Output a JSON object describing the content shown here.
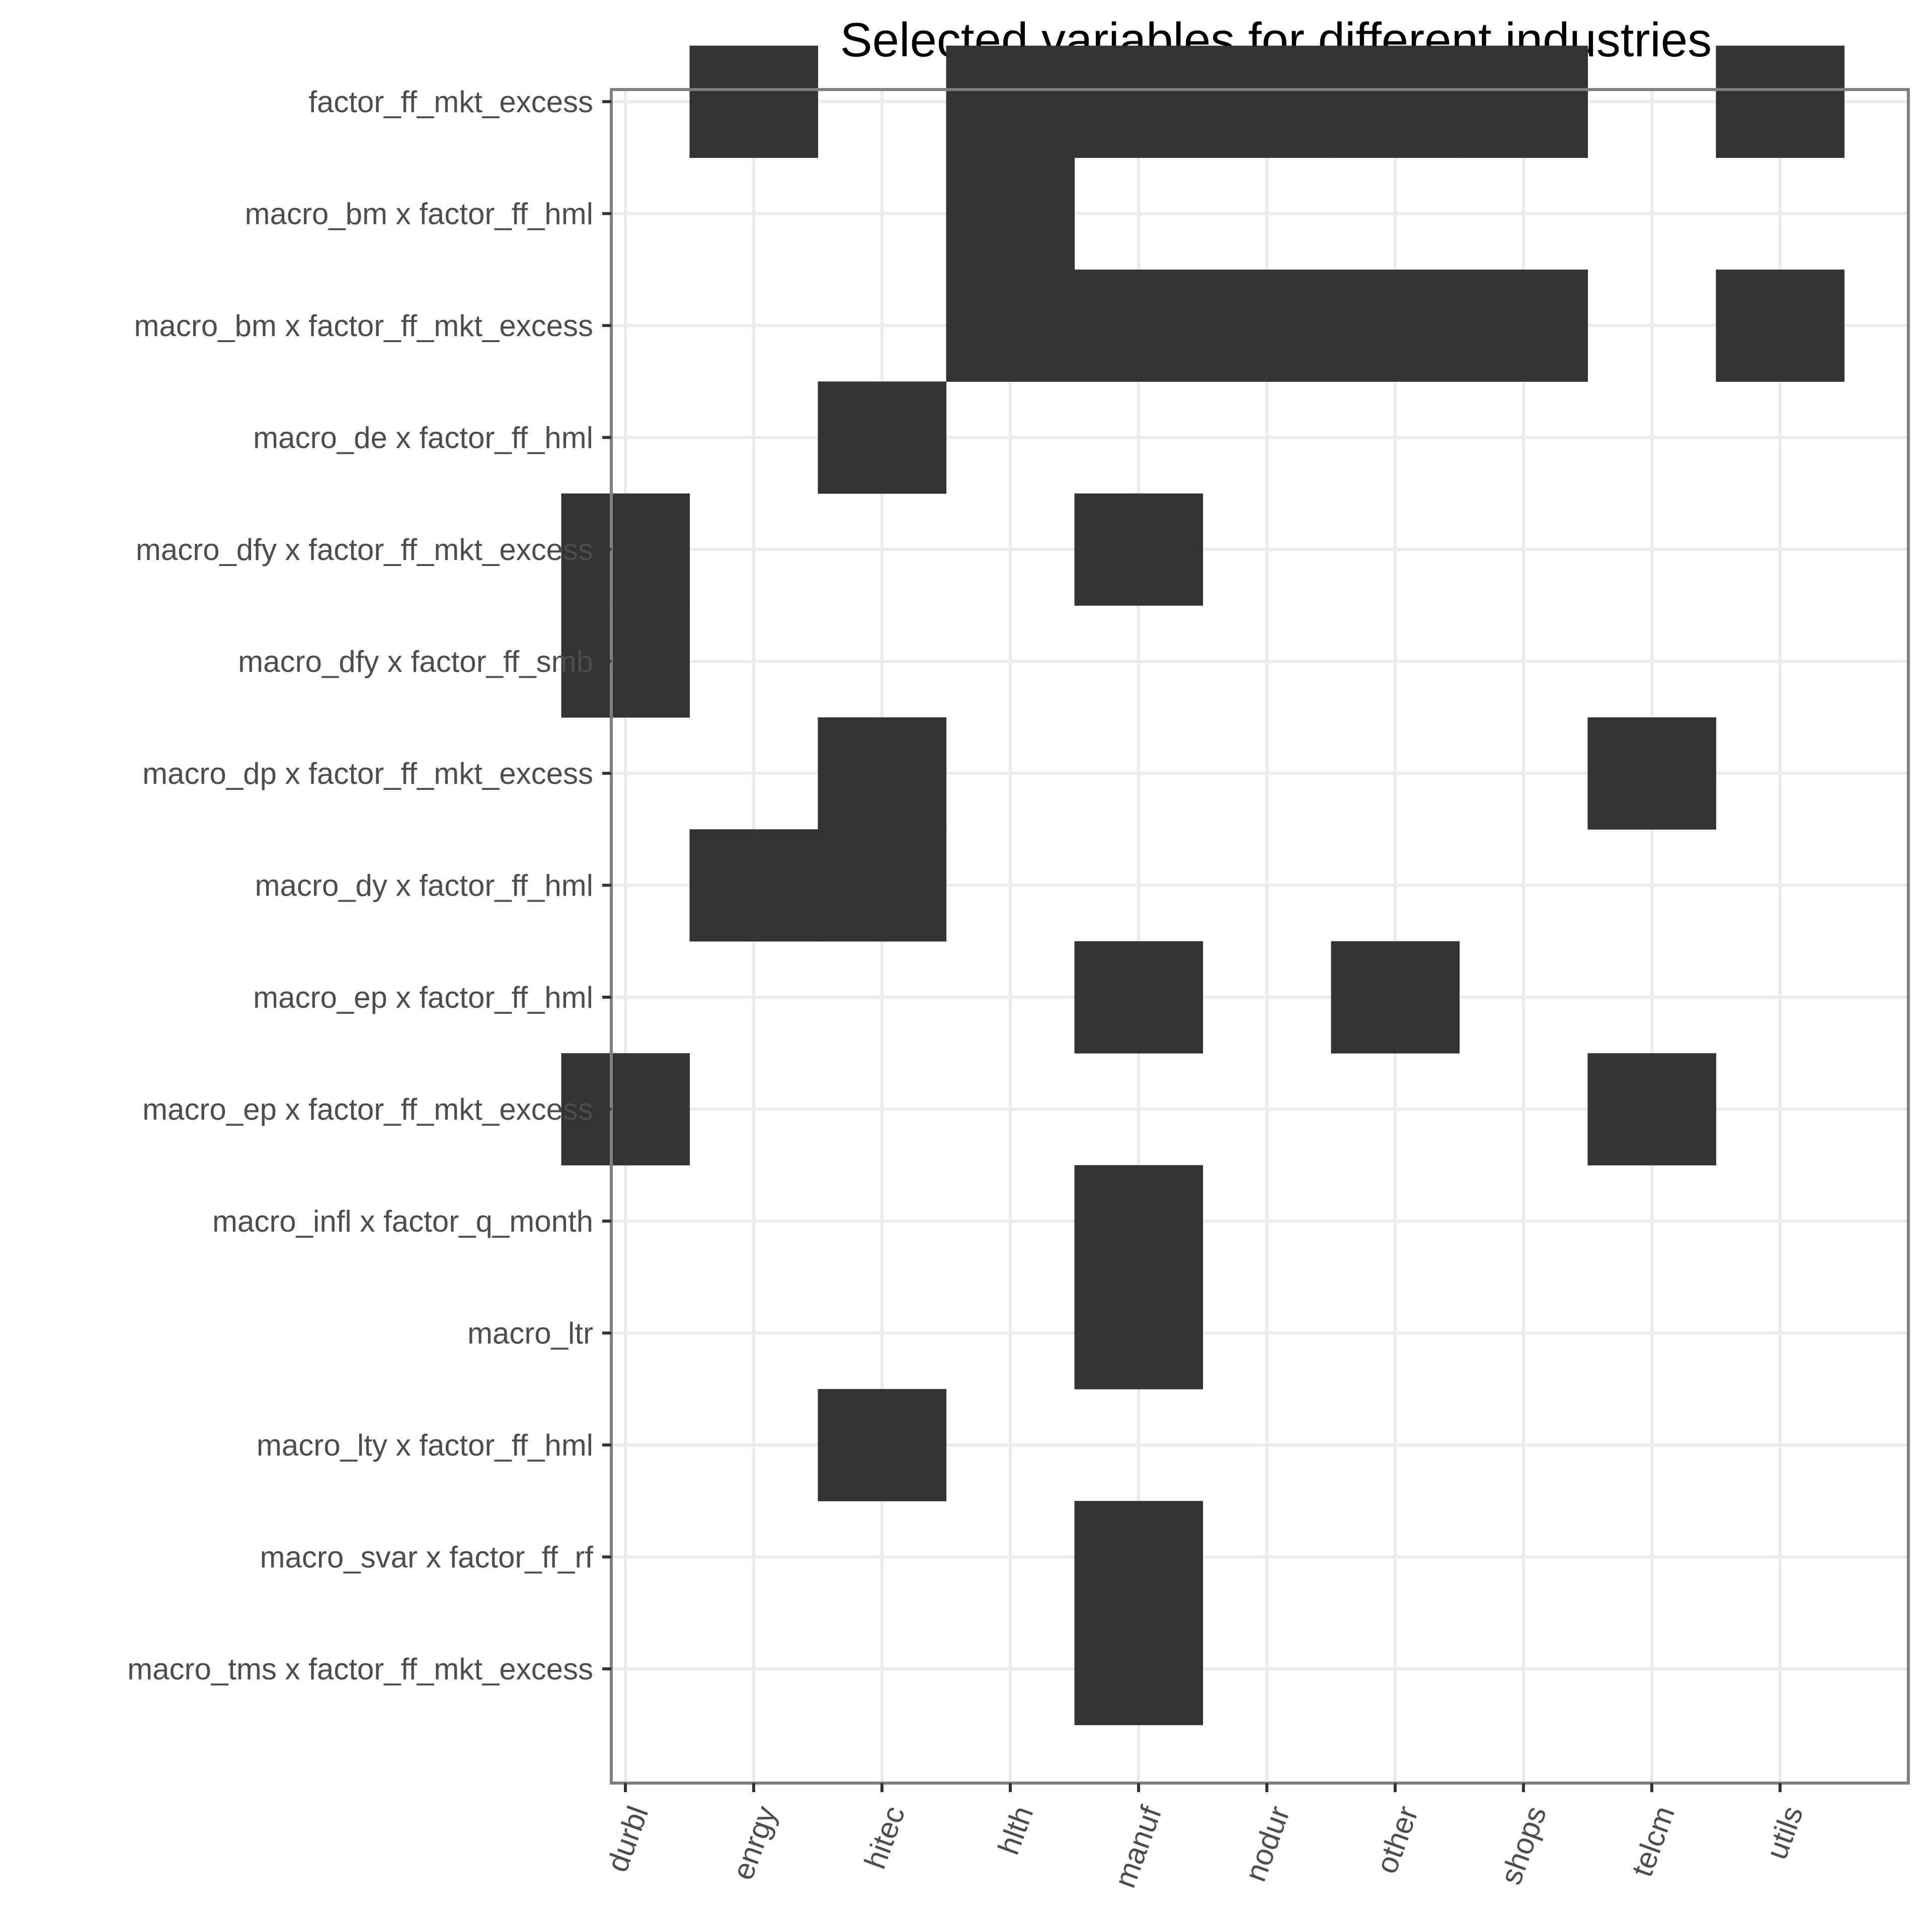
{
  "chart_data": {
    "type": "heatmap",
    "title": "Selected variables for different industries",
    "xlabel": "",
    "ylabel": "",
    "x_categories": [
      "durbl",
      "enrgy",
      "hitec",
      "hlth",
      "manuf",
      "nodur",
      "other",
      "shops",
      "telcm",
      "utils"
    ],
    "y_categories": [
      "factor_ff_mkt_excess",
      "macro_bm x factor_ff_hml",
      "macro_bm x factor_ff_mkt_excess",
      "macro_de x factor_ff_hml",
      "macro_dfy x factor_ff_mkt_excess",
      "macro_dfy x factor_ff_smb",
      "macro_dp x factor_ff_mkt_excess",
      "macro_dy x factor_ff_hml",
      "macro_ep x factor_ff_hml",
      "macro_ep x factor_ff_mkt_excess",
      "macro_infl x factor_q_month",
      "macro_ltr",
      "macro_lty x factor_ff_hml",
      "macro_svar x factor_ff_rf",
      "macro_tms x factor_ff_mkt_excess"
    ],
    "selected": [
      {
        "y": "factor_ff_mkt_excess",
        "x": [
          "enrgy",
          "hlth",
          "manuf",
          "nodur",
          "other",
          "shops",
          "utils"
        ]
      },
      {
        "y": "macro_bm x factor_ff_hml",
        "x": [
          "hlth"
        ]
      },
      {
        "y": "macro_bm x factor_ff_mkt_excess",
        "x": [
          "hlth",
          "manuf",
          "nodur",
          "other",
          "shops",
          "utils"
        ]
      },
      {
        "y": "macro_de x factor_ff_hml",
        "x": [
          "hitec"
        ]
      },
      {
        "y": "macro_dfy x factor_ff_mkt_excess",
        "x": [
          "durbl",
          "manuf"
        ]
      },
      {
        "y": "macro_dfy x factor_ff_smb",
        "x": [
          "durbl"
        ]
      },
      {
        "y": "macro_dp x factor_ff_mkt_excess",
        "x": [
          "hitec",
          "telcm"
        ]
      },
      {
        "y": "macro_dy x factor_ff_hml",
        "x": [
          "enrgy",
          "hitec"
        ]
      },
      {
        "y": "macro_ep x factor_ff_hml",
        "x": [
          "manuf",
          "other"
        ]
      },
      {
        "y": "macro_ep x factor_ff_mkt_excess",
        "x": [
          "durbl",
          "telcm"
        ]
      },
      {
        "y": "macro_infl x factor_q_month",
        "x": [
          "manuf"
        ]
      },
      {
        "y": "macro_ltr",
        "x": [
          "manuf"
        ]
      },
      {
        "y": "macro_lty x factor_ff_hml",
        "x": [
          "hitec"
        ]
      },
      {
        "y": "macro_svar x factor_ff_rf",
        "x": [
          "manuf"
        ]
      },
      {
        "y": "macro_tms x factor_ff_mkt_excess",
        "x": [
          "manuf"
        ]
      }
    ],
    "fill_color": "#333333",
    "grid": true,
    "grid_color": "#ebebeb",
    "panel_border_color": "#7f7f7f",
    "x_tick_label_rotation": -70
  }
}
